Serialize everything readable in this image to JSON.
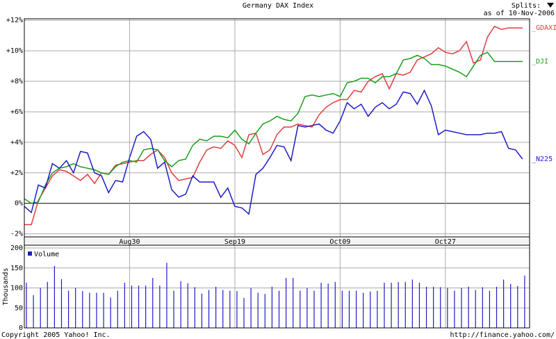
{
  "header": {
    "splits": "Splits:",
    "as_of": "as of 10-Nov-2006"
  },
  "footer": {
    "copyright": "Copyright 2005 Yahoo! Inc.",
    "url": "http://finance.yahoo.com/"
  },
  "chart_data": [
    {
      "type": "line",
      "title": "Germany DAX Index",
      "x": [
        0,
        1,
        2,
        3,
        4,
        5,
        6,
        7,
        8,
        9,
        10,
        11,
        12,
        13,
        14,
        15,
        16,
        17,
        18,
        19,
        20,
        21,
        22,
        23,
        24,
        25,
        26,
        27,
        28,
        29,
        30,
        31,
        32,
        33,
        34,
        35,
        36,
        37,
        38,
        39,
        40,
        41,
        42,
        43,
        44,
        45,
        46,
        47,
        48,
        49,
        50,
        51,
        52,
        53,
        54,
        55,
        56,
        57,
        58,
        59,
        60,
        61,
        62,
        63,
        64,
        65,
        66,
        67,
        68,
        69,
        70,
        71
      ],
      "xlim": [
        0,
        72
      ],
      "xticks": [
        {
          "value": 15,
          "label": "Aug30"
        },
        {
          "value": 30,
          "label": "Sep19"
        },
        {
          "value": 45,
          "label": "Oct09"
        },
        {
          "value": 60,
          "label": "Oct27"
        }
      ],
      "ylim": [
        -2.2,
        12.1
      ],
      "yticks": [
        {
          "value": -2,
          "label": "-2%"
        },
        {
          "value": 0,
          "label": "0%"
        },
        {
          "value": 2,
          "label": "+2%"
        },
        {
          "value": 4,
          "label": "+4%"
        },
        {
          "value": 6,
          "label": "+6%"
        },
        {
          "value": 8,
          "label": "+8%"
        },
        {
          "value": 10,
          "label": "+10%"
        },
        {
          "value": 12,
          "label": "+12%"
        }
      ],
      "grid": true,
      "series": [
        {
          "name": "_GDAXI",
          "color": "#e03c3c",
          "values": [
            -1.4,
            -1.4,
            0.2,
            1.0,
            1.8,
            2.2,
            2.1,
            1.8,
            1.5,
            1.9,
            1.3,
            2.0,
            1.9,
            2.5,
            2.6,
            2.7,
            2.8,
            2.8,
            3.2,
            3.5,
            3.0,
            2.0,
            1.5,
            1.6,
            1.7,
            2.7,
            3.5,
            3.7,
            3.6,
            4.1,
            3.8,
            3.0,
            4.5,
            4.6,
            3.2,
            3.5,
            4.5,
            5.0,
            5.0,
            5.2,
            5.1,
            5.0,
            5.8,
            6.3,
            6.6,
            6.8,
            6.8,
            7.4,
            7.3,
            8.0,
            8.3,
            8.5,
            7.5,
            8.5,
            8.4,
            8.6,
            9.4,
            9.6,
            9.8,
            10.2,
            9.9,
            9.8,
            10.0,
            10.6,
            9.2,
            9.4,
            10.9,
            11.6,
            11.4,
            11.5,
            11.5,
            11.5
          ]
        },
        {
          "name": "_DJI",
          "color": "#1a9e1a",
          "values": [
            0.3,
            0.0,
            0.1,
            1.2,
            2.0,
            2.3,
            2.4,
            2.6,
            2.4,
            2.3,
            2.2,
            2.0,
            1.9,
            2.4,
            2.7,
            2.8,
            2.7,
            3.5,
            3.6,
            3.5,
            2.8,
            2.4,
            2.8,
            2.9,
            3.8,
            4.2,
            4.1,
            4.4,
            4.4,
            4.3,
            4.8,
            4.2,
            3.9,
            4.6,
            5.2,
            5.4,
            5.7,
            5.5,
            5.4,
            5.9,
            7.0,
            7.1,
            7.0,
            7.1,
            7.2,
            7.0,
            7.9,
            8.0,
            8.2,
            8.2,
            7.9,
            8.3,
            8.3,
            8.5,
            9.4,
            9.5,
            9.7,
            9.5,
            9.1,
            9.1,
            9.0,
            8.8,
            8.6,
            8.3,
            9.0,
            9.7,
            9.9,
            9.3,
            9.3,
            9.3,
            9.3,
            9.3
          ]
        },
        {
          "name": "_N225",
          "color": "#1c1cc8",
          "values": [
            -0.2,
            -0.6,
            1.2,
            1.0,
            2.6,
            2.3,
            2.8,
            2.0,
            3.4,
            3.3,
            2.0,
            1.8,
            0.7,
            1.5,
            1.4,
            3.0,
            4.4,
            4.7,
            4.2,
            2.3,
            2.7,
            0.9,
            0.4,
            0.6,
            1.8,
            1.4,
            1.4,
            1.4,
            0.4,
            1.0,
            -0.2,
            -0.3,
            -0.7,
            1.9,
            2.3,
            3.0,
            3.8,
            3.7,
            2.8,
            5.1,
            5.0,
            5.1,
            5.2,
            4.8,
            4.6,
            5.4,
            6.6,
            6.2,
            6.5,
            5.7,
            6.3,
            6.6,
            6.2,
            6.5,
            7.3,
            7.2,
            6.5,
            7.4,
            6.4,
            4.5,
            4.8,
            4.7,
            4.6,
            4.5,
            4.5,
            4.5,
            4.6,
            4.6,
            4.7,
            3.6,
            3.5,
            2.9
          ]
        }
      ]
    },
    {
      "type": "bar",
      "y_label": "Thousands",
      "x": [
        0,
        1,
        2,
        3,
        4,
        5,
        6,
        7,
        8,
        9,
        10,
        11,
        12,
        13,
        14,
        15,
        16,
        17,
        18,
        19,
        20,
        21,
        22,
        23,
        24,
        25,
        26,
        27,
        28,
        29,
        30,
        31,
        32,
        33,
        34,
        35,
        36,
        37,
        38,
        39,
        40,
        41,
        42,
        43,
        44,
        45,
        46,
        47,
        48,
        49,
        50,
        51,
        52,
        53,
        54,
        55,
        56,
        57,
        58,
        59,
        60,
        61,
        62,
        63,
        64,
        65,
        66,
        67,
        68,
        69,
        70,
        71
      ],
      "xlim": [
        0,
        72
      ],
      "xticks": [
        15,
        30,
        45,
        60
      ],
      "ylim": [
        0,
        207
      ],
      "yticks": [
        0,
        50,
        100,
        150,
        200
      ],
      "grid": true,
      "series": [
        {
          "name": "Volume",
          "color": "#1c1cc8",
          "values": [
            113,
            82,
            100,
            115,
            155,
            122,
            93,
            100,
            92,
            88,
            88,
            88,
            76,
            93,
            113,
            106,
            106,
            106,
            125,
            106,
            163,
            93,
            117,
            112,
            102,
            86,
            95,
            103,
            95,
            93,
            92,
            75,
            100,
            88,
            85,
            103,
            93,
            125,
            125,
            93,
            100,
            93,
            113,
            111,
            115,
            93,
            93,
            93,
            88,
            91,
            93,
            113,
            113,
            115,
            115,
            121,
            113,
            103,
            103,
            102,
            100,
            93,
            100,
            103,
            95,
            102,
            93,
            103,
            121,
            110,
            105,
            131
          ]
        }
      ]
    }
  ]
}
